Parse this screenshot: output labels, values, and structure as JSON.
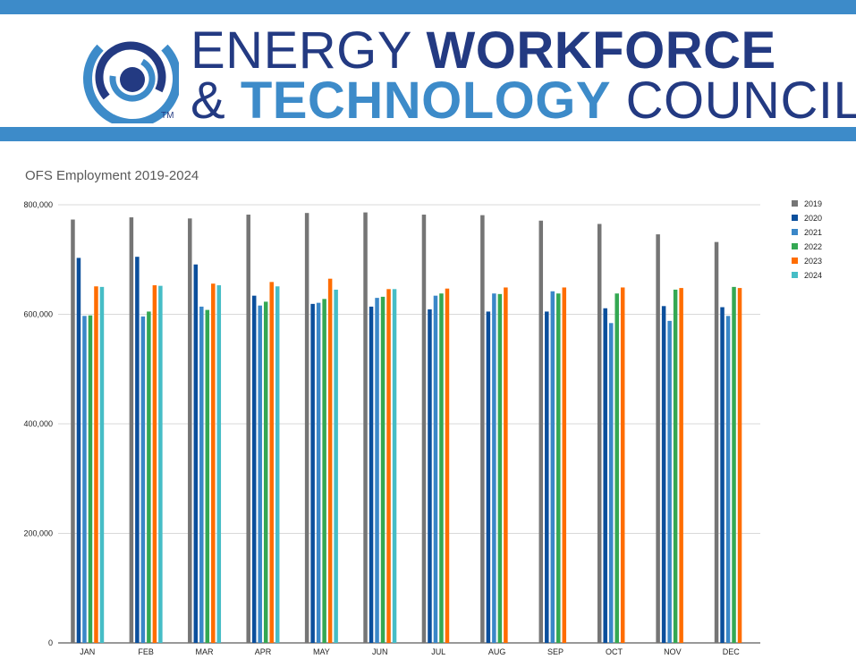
{
  "header": {
    "line1_thin": "ENERGY",
    "line1_bold": "WORKFORCE",
    "line2_thin_prefix": "&",
    "line2_bold": "TECHNOLOGY",
    "line2_thin": "COUNCIL",
    "trademark": "TM",
    "colors": {
      "navy": "#233a82",
      "blue": "#3d8bc9"
    }
  },
  "chart_data": {
    "type": "bar",
    "title": "OFS Employment 2019-2024",
    "xlabel": "",
    "ylabel": "",
    "ylim": [
      0,
      800000
    ],
    "yticks": [
      "0",
      "200,000",
      "400,000",
      "600,000",
      "800,000"
    ],
    "ytick_values": [
      0,
      200000,
      400000,
      600000,
      800000
    ],
    "grid": true,
    "legend_position": "right",
    "categories": [
      "JAN",
      "FEB",
      "MAR",
      "APR",
      "MAY",
      "JUN",
      "JUL",
      "AUG",
      "SEP",
      "OCT",
      "NOV",
      "DEC"
    ],
    "series": [
      {
        "name": "2019",
        "color": "#757575",
        "values": [
          773000,
          777000,
          775000,
          782000,
          785000,
          786000,
          782000,
          781000,
          771000,
          765000,
          746000,
          732000
        ]
      },
      {
        "name": "2020",
        "color": "#0b4f9c",
        "values": [
          703000,
          705000,
          691000,
          634000,
          619000,
          614000,
          609000,
          605000,
          605000,
          611000,
          615000,
          613000
        ]
      },
      {
        "name": "2021",
        "color": "#3a87c8",
        "values": [
          597000,
          596000,
          614000,
          616000,
          621000,
          630000,
          634000,
          638000,
          642000,
          584000,
          588000,
          597000
        ]
      },
      {
        "name": "2022",
        "color": "#34a853",
        "values": [
          598000,
          605000,
          608000,
          623000,
          628000,
          632000,
          638000,
          637000,
          638000,
          638000,
          645000,
          650000
        ]
      },
      {
        "name": "2023",
        "color": "#ff6d00",
        "values": [
          651000,
          653000,
          656000,
          659000,
          665000,
          646000,
          647000,
          649000,
          649000,
          649000,
          648000,
          648000
        ]
      },
      {
        "name": "2024",
        "color": "#46bdc6",
        "values": [
          650000,
          652000,
          653000,
          651000,
          645000,
          646000,
          null,
          null,
          null,
          null,
          null,
          null
        ]
      }
    ]
  }
}
